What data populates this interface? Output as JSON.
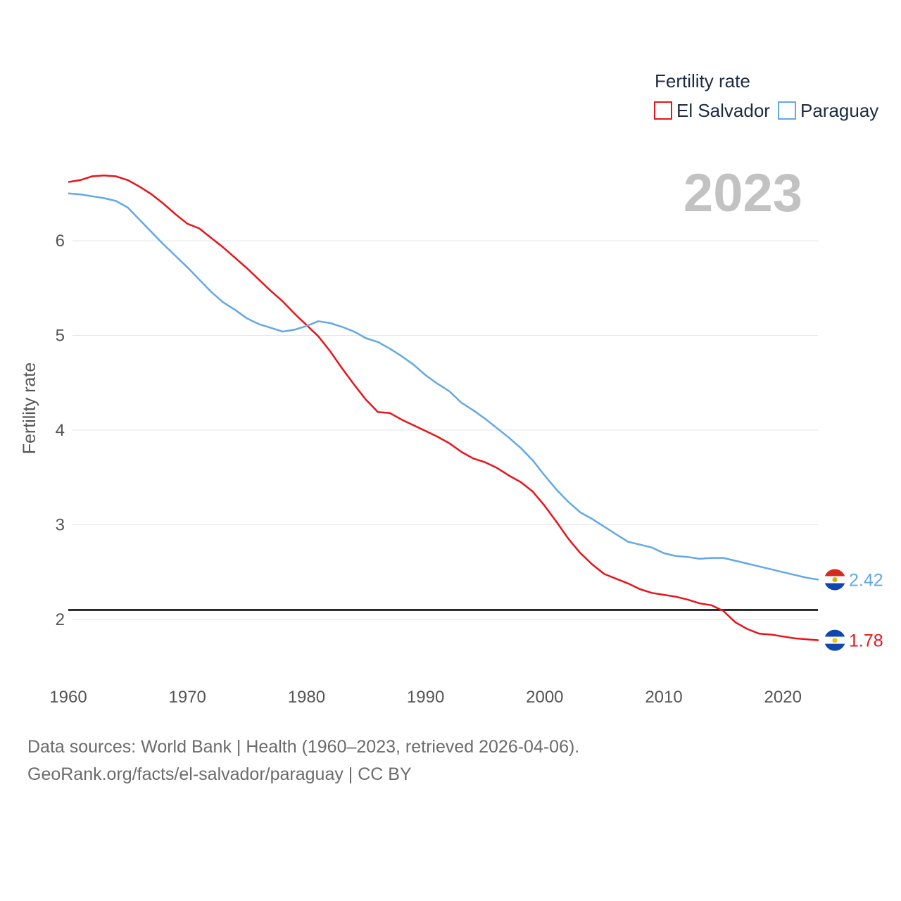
{
  "legend": {
    "title": "Fertility rate"
  },
  "year_badge": "2023",
  "sources": {
    "line1": "Data sources: World Bank | Health (1960–2023, retrieved 2026-04-06).",
    "line2": "GeoRank.org/facts/el-salvador/paraguay | CC BY"
  },
  "colors": {
    "el_salvador": "#e8141b",
    "paraguay": "#63a8e6",
    "reference_line": "#000000",
    "grid": "#e6e6e6"
  },
  "chart_data": {
    "type": "line",
    "title": "",
    "xlabel": "",
    "ylabel": "Fertility rate",
    "xlim": [
      1960,
      2023
    ],
    "ylim": [
      1.5,
      7.0
    ],
    "x_ticks": [
      1960,
      1970,
      1980,
      1990,
      2000,
      2010,
      2020
    ],
    "y_ticks": [
      2,
      3,
      4,
      5,
      6
    ],
    "reference_line": 2.1,
    "x": [
      1960,
      1961,
      1962,
      1963,
      1964,
      1965,
      1966,
      1967,
      1968,
      1969,
      1970,
      1971,
      1972,
      1973,
      1974,
      1975,
      1976,
      1977,
      1978,
      1979,
      1980,
      1981,
      1982,
      1983,
      1984,
      1985,
      1986,
      1987,
      1988,
      1989,
      1990,
      1991,
      1992,
      1993,
      1994,
      1995,
      1996,
      1997,
      1998,
      1999,
      2000,
      2001,
      2002,
      2003,
      2004,
      2005,
      2006,
      2007,
      2008,
      2009,
      2010,
      2011,
      2012,
      2013,
      2014,
      2015,
      2016,
      2017,
      2018,
      2019,
      2020,
      2021,
      2022,
      2023
    ],
    "series": [
      {
        "name": "El Salvador",
        "color": "#e8141b",
        "end_label": "1.78",
        "values": [
          6.62,
          6.64,
          6.68,
          6.69,
          6.68,
          6.64,
          6.57,
          6.49,
          6.39,
          6.28,
          6.18,
          6.13,
          6.03,
          5.93,
          5.82,
          5.71,
          5.59,
          5.47,
          5.36,
          5.23,
          5.11,
          4.99,
          4.83,
          4.65,
          4.48,
          4.32,
          4.19,
          4.18,
          4.11,
          4.05,
          3.99,
          3.93,
          3.86,
          3.77,
          3.7,
          3.66,
          3.6,
          3.52,
          3.45,
          3.35,
          3.2,
          3.03,
          2.85,
          2.7,
          2.58,
          2.48,
          2.43,
          2.38,
          2.32,
          2.28,
          2.26,
          2.24,
          2.21,
          2.17,
          2.15,
          2.09,
          1.97,
          1.9,
          1.85,
          1.84,
          1.82,
          1.8,
          1.79,
          1.78
        ]
      },
      {
        "name": "Paraguay",
        "color": "#63a8e6",
        "end_label": "2.42",
        "values": [
          6.5,
          6.49,
          6.47,
          6.45,
          6.42,
          6.35,
          6.22,
          6.09,
          5.96,
          5.84,
          5.72,
          5.59,
          5.46,
          5.35,
          5.27,
          5.18,
          5.12,
          5.08,
          5.04,
          5.06,
          5.1,
          5.15,
          5.13,
          5.09,
          5.04,
          4.97,
          4.93,
          4.86,
          4.78,
          4.69,
          4.58,
          4.49,
          4.41,
          4.29,
          4.21,
          4.12,
          4.02,
          3.92,
          3.81,
          3.68,
          3.52,
          3.37,
          3.24,
          3.13,
          3.06,
          2.98,
          2.9,
          2.82,
          2.79,
          2.76,
          2.7,
          2.67,
          2.66,
          2.64,
          2.65,
          2.65,
          2.62,
          2.59,
          2.56,
          2.53,
          2.5,
          2.47,
          2.44,
          2.42
        ]
      }
    ]
  }
}
